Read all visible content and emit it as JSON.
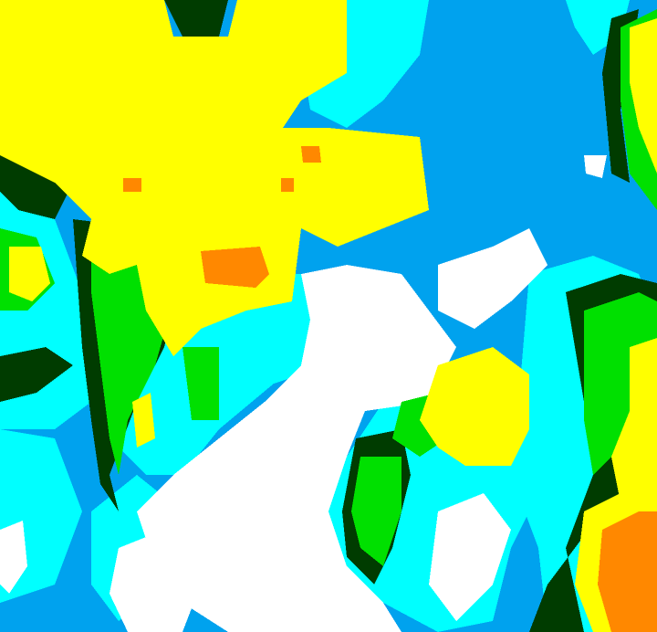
{
  "palette": {
    "white": "#ffffff",
    "cyan": "#00ffff",
    "blue": "#00a2ee",
    "green": "#00e000",
    "dark_green": "#003c00",
    "yellow": "#ffff00",
    "orange": "#ff8800"
  }
}
